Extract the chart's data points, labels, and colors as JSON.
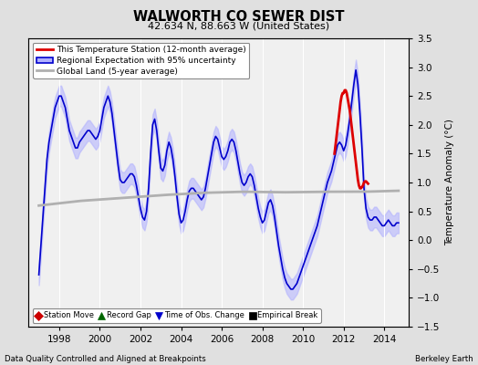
{
  "title": "WALWORTH CO SEWER DIST",
  "subtitle": "42.634 N, 88.663 W (United States)",
  "ylabel": "Temperature Anomaly (°C)",
  "footer_left": "Data Quality Controlled and Aligned at Breakpoints",
  "footer_right": "Berkeley Earth",
  "xlim": [
    1996.5,
    2015.2
  ],
  "ylim": [
    -1.5,
    3.5
  ],
  "yticks": [
    -1.5,
    -1.0,
    -0.5,
    0.0,
    0.5,
    1.0,
    1.5,
    2.0,
    2.5,
    3.0,
    3.5
  ],
  "xticks": [
    1998,
    2000,
    2002,
    2004,
    2006,
    2008,
    2010,
    2012,
    2014
  ],
  "bg_color": "#e0e0e0",
  "plot_bg_color": "#f0f0f0",
  "grid_color": "white",
  "blue_line_color": "#0000cc",
  "blue_fill_color": "#b0b0ff",
  "red_line_color": "#dd0000",
  "gray_line_color": "#b0b0b0",
  "legend_items": [
    {
      "label": "This Temperature Station (12-month average)",
      "color": "#dd0000",
      "lw": 2,
      "type": "line"
    },
    {
      "label": "Regional Expectation with 95% uncertainty",
      "color": "#0000cc",
      "lw": 2,
      "type": "fill"
    },
    {
      "label": "Global Land (5-year average)",
      "color": "#b0b0b0",
      "lw": 2,
      "type": "line"
    }
  ],
  "bottom_legend": [
    {
      "label": "Station Move",
      "color": "#cc0000",
      "marker": "D"
    },
    {
      "label": "Record Gap",
      "color": "#006600",
      "marker": "^"
    },
    {
      "label": "Time of Obs. Change",
      "color": "#0000cc",
      "marker": "v"
    },
    {
      "label": "Empirical Break",
      "color": "#000000",
      "marker": "s"
    }
  ],
  "blue_x": [
    1997.0,
    1997.1,
    1997.2,
    1997.3,
    1997.4,
    1997.5,
    1997.6,
    1997.7,
    1997.8,
    1997.9,
    1998.0,
    1998.1,
    1998.2,
    1998.3,
    1998.4,
    1998.5,
    1998.6,
    1998.7,
    1998.8,
    1998.9,
    1999.0,
    1999.1,
    1999.2,
    1999.3,
    1999.4,
    1999.5,
    1999.6,
    1999.7,
    1999.8,
    1999.9,
    2000.0,
    2000.1,
    2000.2,
    2000.3,
    2000.4,
    2000.5,
    2000.6,
    2000.7,
    2000.8,
    2000.9,
    2001.0,
    2001.1,
    2001.2,
    2001.3,
    2001.4,
    2001.5,
    2001.6,
    2001.7,
    2001.8,
    2001.9,
    2002.0,
    2002.1,
    2002.2,
    2002.3,
    2002.4,
    2002.5,
    2002.6,
    2002.7,
    2002.8,
    2002.9,
    2003.0,
    2003.1,
    2003.2,
    2003.3,
    2003.4,
    2003.5,
    2003.6,
    2003.7,
    2003.8,
    2003.9,
    2004.0,
    2004.1,
    2004.2,
    2004.3,
    2004.4,
    2004.5,
    2004.6,
    2004.7,
    2004.8,
    2004.9,
    2005.0,
    2005.1,
    2005.2,
    2005.3,
    2005.4,
    2005.5,
    2005.6,
    2005.7,
    2005.8,
    2005.9,
    2006.0,
    2006.1,
    2006.2,
    2006.3,
    2006.4,
    2006.5,
    2006.6,
    2006.7,
    2006.8,
    2006.9,
    2007.0,
    2007.1,
    2007.2,
    2007.3,
    2007.4,
    2007.5,
    2007.6,
    2007.7,
    2007.8,
    2007.9,
    2008.0,
    2008.1,
    2008.2,
    2008.3,
    2008.4,
    2008.5,
    2008.6,
    2008.7,
    2008.8,
    2008.9,
    2009.0,
    2009.1,
    2009.2,
    2009.3,
    2009.4,
    2009.5,
    2009.6,
    2009.7,
    2009.8,
    2009.9,
    2010.0,
    2010.1,
    2010.2,
    2010.3,
    2010.4,
    2010.5,
    2010.6,
    2010.7,
    2010.8,
    2010.9,
    2011.0,
    2011.1,
    2011.2,
    2011.3,
    2011.4,
    2011.5,
    2011.6,
    2011.7,
    2011.8,
    2011.9,
    2012.0,
    2012.1,
    2012.2,
    2012.3,
    2012.4,
    2012.5,
    2012.6,
    2012.7,
    2012.8,
    2012.9,
    2013.0,
    2013.1,
    2013.2,
    2013.3,
    2013.4,
    2013.5,
    2013.6,
    2013.7,
    2013.8,
    2013.9,
    2014.0,
    2014.1,
    2014.2,
    2014.3,
    2014.4,
    2014.5,
    2014.6,
    2014.7
  ],
  "blue_y": [
    -0.6,
    -0.1,
    0.4,
    0.9,
    1.4,
    1.7,
    1.9,
    2.1,
    2.3,
    2.4,
    2.5,
    2.5,
    2.4,
    2.3,
    2.1,
    1.9,
    1.8,
    1.7,
    1.6,
    1.6,
    1.7,
    1.75,
    1.8,
    1.85,
    1.9,
    1.9,
    1.85,
    1.8,
    1.75,
    1.8,
    1.9,
    2.1,
    2.3,
    2.4,
    2.5,
    2.4,
    2.2,
    1.9,
    1.6,
    1.3,
    1.05,
    1.0,
    1.0,
    1.05,
    1.1,
    1.15,
    1.15,
    1.1,
    0.95,
    0.75,
    0.55,
    0.4,
    0.35,
    0.5,
    0.9,
    1.5,
    2.0,
    2.1,
    1.9,
    1.55,
    1.25,
    1.2,
    1.3,
    1.55,
    1.7,
    1.6,
    1.4,
    1.1,
    0.75,
    0.45,
    0.3,
    0.35,
    0.5,
    0.7,
    0.85,
    0.9,
    0.9,
    0.85,
    0.8,
    0.75,
    0.7,
    0.75,
    0.9,
    1.1,
    1.3,
    1.5,
    1.7,
    1.8,
    1.75,
    1.6,
    1.45,
    1.4,
    1.45,
    1.55,
    1.7,
    1.75,
    1.7,
    1.55,
    1.35,
    1.15,
    1.0,
    0.95,
    1.0,
    1.1,
    1.15,
    1.1,
    0.95,
    0.75,
    0.55,
    0.4,
    0.3,
    0.35,
    0.5,
    0.65,
    0.7,
    0.6,
    0.4,
    0.15,
    -0.1,
    -0.3,
    -0.5,
    -0.65,
    -0.75,
    -0.8,
    -0.85,
    -0.85,
    -0.8,
    -0.75,
    -0.65,
    -0.55,
    -0.45,
    -0.35,
    -0.25,
    -0.15,
    -0.05,
    0.05,
    0.15,
    0.25,
    0.4,
    0.55,
    0.7,
    0.85,
    1.0,
    1.1,
    1.2,
    1.35,
    1.5,
    1.65,
    1.7,
    1.65,
    1.55,
    1.65,
    1.85,
    2.1,
    2.4,
    2.7,
    2.95,
    2.7,
    2.2,
    1.6,
    0.9,
    0.55,
    0.4,
    0.35,
    0.35,
    0.4,
    0.4,
    0.35,
    0.3,
    0.25,
    0.25,
    0.3,
    0.35,
    0.3,
    0.25,
    0.25,
    0.3,
    0.3
  ],
  "blue_unc": 0.18,
  "gray_x": [
    1997.0,
    1999.0,
    2001.0,
    2003.0,
    2005.0,
    2007.0,
    2009.0,
    2011.0,
    2013.0,
    2015.0
  ],
  "gray_y": [
    0.6,
    0.68,
    0.73,
    0.78,
    0.82,
    0.84,
    0.83,
    0.84,
    0.84,
    0.86
  ],
  "red_x": [
    2011.55,
    2011.6,
    2011.65,
    2011.7,
    2011.75,
    2011.8,
    2011.85,
    2011.9,
    2011.95,
    2012.0,
    2012.05,
    2012.1,
    2012.15,
    2012.2,
    2012.25,
    2012.3,
    2012.35,
    2012.4,
    2012.45,
    2012.5,
    2012.55,
    2012.6,
    2012.65,
    2012.7,
    2012.75,
    2012.8,
    2012.85,
    2012.9,
    2012.95,
    2013.0,
    2013.05,
    2013.1,
    2013.15,
    2013.2
  ],
  "red_y": [
    1.5,
    1.65,
    1.8,
    1.95,
    2.1,
    2.25,
    2.4,
    2.5,
    2.55,
    2.55,
    2.6,
    2.6,
    2.55,
    2.45,
    2.35,
    2.25,
    2.1,
    1.95,
    1.8,
    1.65,
    1.5,
    1.35,
    1.2,
    1.05,
    0.95,
    0.9,
    0.9,
    0.92,
    0.95,
    1.0,
    1.02,
    1.02,
    1.0,
    0.98
  ]
}
